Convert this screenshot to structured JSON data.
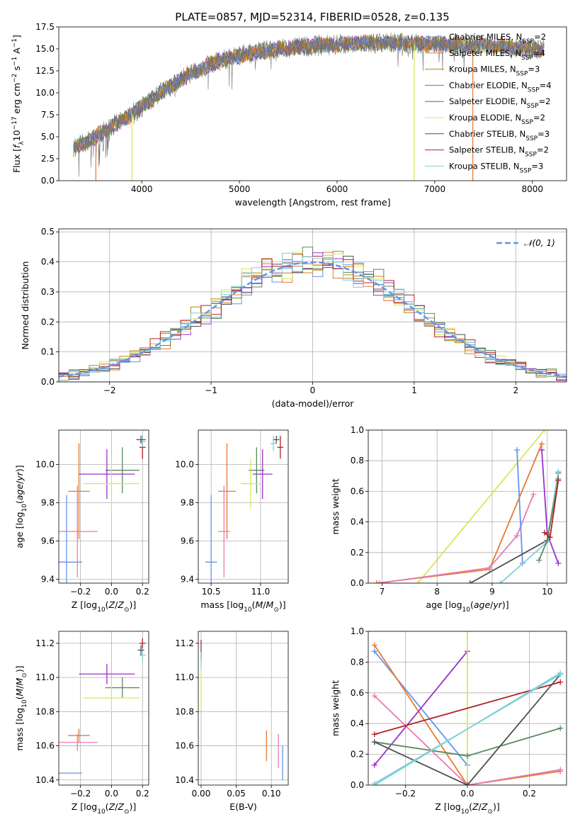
{
  "title": "PLATE=0857, MJD=52314, FIBERID=0528, z=0.135",
  "colors": {
    "miles_chabrier": "#6495ed",
    "miles_salpeter": "#e67a2e",
    "miles_kroupa": "#b8860b",
    "elodie_chabrier": "#5a8a5e",
    "elodie_salpeter": "#9a32cd",
    "elodie_kroupa": "#d4e85a",
    "stelib_chabrier": "#505050",
    "stelib_salpeter": "#b22222",
    "stelib_kroupa": "#7fd0d8",
    "pink": "#e87ab0",
    "normal": "#6495ed",
    "grid": "#b0b0b0"
  },
  "legend": [
    {
      "label": "Chabrier MILES, N",
      "sub": "SSP",
      "suffix": "=2",
      "color": "#6495ed"
    },
    {
      "label": "Salpeter MILES, N",
      "sub": "SSP",
      "suffix": "=4",
      "color": "#e67a2e"
    },
    {
      "label": "Kroupa MILES, N",
      "sub": "SSP",
      "suffix": "=3",
      "color": "#b8860b"
    },
    {
      "label": "Chabrier ELODIE, N",
      "sub": "SSP",
      "suffix": "=4",
      "color": "#5a8a5e"
    },
    {
      "label": "Salpeter ELODIE, N",
      "sub": "SSP",
      "suffix": "=2",
      "color": "#9a32cd"
    },
    {
      "label": "Kroupa ELODIE, N",
      "sub": "SSP",
      "suffix": "=2",
      "color": "#d4e85a"
    },
    {
      "label": "Chabrier STELIB, N",
      "sub": "SSP",
      "suffix": "=3",
      "color": "#505050"
    },
    {
      "label": "Salpeter STELIB, N",
      "sub": "SSP",
      "suffix": "=2",
      "color": "#b22222"
    },
    {
      "label": "Kroupa STELIB, N",
      "sub": "SSP",
      "suffix": "=3",
      "color": "#7fd0d8"
    }
  ],
  "chart_data": [
    {
      "type": "line",
      "title": "PLATE=0857, MJD=52314, FIBERID=0528, z=0.135",
      "xlabel": "wavelength [Angstrom, rest frame]",
      "ylabel": "Flux [f_λ 10^-17 erg cm^-2 s^-1 A^-1]",
      "xlim": [
        3150,
        8350
      ],
      "ylim": [
        0,
        17.5
      ],
      "xticks": [
        4000,
        5000,
        6000,
        7000,
        8000
      ],
      "yticks": [
        0.0,
        2.5,
        5.0,
        7.5,
        10.0,
        12.5,
        15.0,
        17.5
      ],
      "grid": false,
      "legend": "right",
      "continuum": {
        "x": [
          3300,
          3500,
          3700,
          3850,
          3950,
          4100,
          4300,
          4500,
          4800,
          5100,
          5400,
          5700,
          6000,
          6300,
          6600,
          6900,
          7200,
          7500,
          7800,
          8100
        ],
        "y": [
          3.8,
          4.8,
          6.2,
          7.2,
          8.0,
          9.3,
          10.8,
          12.2,
          13.7,
          14.5,
          15.0,
          15.3,
          15.5,
          15.7,
          15.7,
          15.6,
          15.5,
          15.4,
          15.2,
          14.9
        ]
      }
    },
    {
      "type": "bar",
      "xlabel": "(data-model)/error",
      "ylabel": "Normed distribution",
      "xlim": [
        -2.5,
        2.5
      ],
      "ylim": [
        0,
        0.51
      ],
      "xticks": [
        -2,
        -1,
        0,
        1,
        2
      ],
      "yticks": [
        0.0,
        0.1,
        0.2,
        0.3,
        0.4,
        0.5
      ],
      "grid": true,
      "legend": "top-right",
      "normal_label": "𝒩(0, 1)",
      "bin_width": 0.1
    },
    {
      "type": "scatter",
      "xlabel": "Z [log10(Z/Z⊙)]",
      "ylabel": "age [log10(age/yr)]",
      "xlim": [
        -0.34,
        0.24
      ],
      "ylim": [
        9.38,
        10.18
      ],
      "xticks": [
        -0.2,
        0.0,
        0.2
      ],
      "yticks": [
        9.4,
        9.6,
        9.8,
        10.0
      ],
      "points": [
        {
          "x": -0.29,
          "y": 9.49,
          "xerr": 0.1,
          "yerr": 0.35,
          "color": "#6495ed"
        },
        {
          "x": -0.21,
          "y": 9.86,
          "xerr": 0.07,
          "yerr": 0.25,
          "color": "#e67a2e"
        },
        {
          "x": -0.22,
          "y": 9.65,
          "xerr": 0.13,
          "yerr": 0.24,
          "color": "#e87ab0"
        },
        {
          "x": 0.07,
          "y": 9.97,
          "xerr": 0.11,
          "yerr": 0.12,
          "color": "#5a8a5e"
        },
        {
          "x": -0.03,
          "y": 9.95,
          "xerr": 0.18,
          "yerr": 0.13,
          "color": "#9a32cd"
        },
        {
          "x": 0.0,
          "y": 9.9,
          "xerr": 0.18,
          "yerr": 0.13,
          "color": "#d4e85a"
        },
        {
          "x": 0.2,
          "y": 10.09,
          "xerr": 0.02,
          "yerr": 0.06,
          "color": "#b22222"
        },
        {
          "x": 0.2,
          "y": 10.12,
          "xerr": 0.02,
          "yerr": 0.03,
          "color": "#7fd0d8"
        },
        {
          "x": 0.19,
          "y": 10.13,
          "xerr": 0.03,
          "yerr": 0.02,
          "color": "#505050"
        }
      ]
    },
    {
      "type": "scatter",
      "xlabel": "mass [log10(M/M⊙)]",
      "ylabel": "",
      "xlim": [
        10.37,
        11.28
      ],
      "ylim": [
        9.38,
        10.18
      ],
      "xticks": [
        10.5,
        11.0
      ],
      "yticks": [
        9.4,
        9.6,
        9.8,
        10.0
      ],
      "points": [
        {
          "x": 10.5,
          "y": 9.49,
          "xerr": 0.06,
          "yerr": 0.35,
          "color": "#6495ed"
        },
        {
          "x": 10.66,
          "y": 9.86,
          "xerr": 0.09,
          "yerr": 0.25,
          "color": "#e67a2e"
        },
        {
          "x": 10.63,
          "y": 9.65,
          "xerr": 0.06,
          "yerr": 0.24,
          "color": "#e87ab0"
        },
        {
          "x": 10.96,
          "y": 9.97,
          "xerr": 0.08,
          "yerr": 0.12,
          "color": "#5a8a5e"
        },
        {
          "x": 11.02,
          "y": 9.95,
          "xerr": 0.1,
          "yerr": 0.13,
          "color": "#9a32cd"
        },
        {
          "x": 10.9,
          "y": 9.9,
          "xerr": 0.1,
          "yerr": 0.13,
          "color": "#d4e85a"
        },
        {
          "x": 11.2,
          "y": 10.09,
          "xerr": 0.03,
          "yerr": 0.06,
          "color": "#b22222"
        },
        {
          "x": 11.13,
          "y": 10.11,
          "xerr": 0.03,
          "yerr": 0.04,
          "color": "#7fd0d8"
        },
        {
          "x": 11.16,
          "y": 10.13,
          "xerr": 0.03,
          "yerr": 0.02,
          "color": "#505050"
        }
      ]
    },
    {
      "type": "line",
      "xlabel": "age [log10(age/yr)]",
      "ylabel": "mass weight",
      "xlim": [
        6.75,
        10.35
      ],
      "ylim": [
        0,
        1
      ],
      "xticks": [
        7,
        8,
        9,
        10
      ],
      "yticks": [
        0.0,
        0.2,
        0.4,
        0.6,
        0.8,
        1.0
      ],
      "grid": true,
      "series": [
        {
          "color": "#d4e85a",
          "x": [
            7.65,
            9.95
          ],
          "y": [
            0.0,
            1.0
          ]
        },
        {
          "color": "#e67a2e",
          "x": [
            6.9,
            8.95,
            9.9
          ],
          "y": [
            0.0,
            0.09,
            0.91
          ]
        },
        {
          "color": "#e87ab0",
          "x": [
            6.95,
            8.95,
            9.45,
            9.75
          ],
          "y": [
            0.0,
            0.1,
            0.31,
            0.58
          ]
        },
        {
          "color": "#6495ed",
          "x": [
            9.45,
            9.55
          ],
          "y": [
            0.87,
            0.13
          ]
        },
        {
          "color": "#9a32cd",
          "x": [
            9.9,
            10.0,
            10.2
          ],
          "y": [
            0.87,
            0.32,
            0.13
          ]
        },
        {
          "color": "#505050",
          "x": [
            8.6,
            10.0,
            10.2
          ],
          "y": [
            0.0,
            0.28,
            0.72
          ]
        },
        {
          "color": "#7fd0d8",
          "x": [
            9.15,
            10.0,
            10.2
          ],
          "y": [
            0.0,
            0.27,
            0.73
          ]
        },
        {
          "color": "#5a8a5e",
          "x": [
            9.85,
            10.0,
            10.2
          ],
          "y": [
            0.15,
            0.28,
            0.68
          ]
        },
        {
          "color": "#b22222",
          "x": [
            9.95,
            10.05,
            10.2
          ],
          "y": [
            0.33,
            0.3,
            0.67
          ]
        }
      ]
    },
    {
      "type": "scatter",
      "xlabel": "Z [log10(Z/Z⊙)]",
      "ylabel": "mass [log10(M/M⊙)]",
      "xlim": [
        -0.34,
        0.24
      ],
      "ylim": [
        10.37,
        11.27
      ],
      "xticks": [
        -0.2,
        0.0,
        0.2
      ],
      "yticks": [
        10.4,
        10.6,
        10.8,
        11.0,
        11.2
      ],
      "points": [
        {
          "x": -0.29,
          "y": 10.44,
          "xerr": 0.1,
          "yerr": 0.0,
          "color": "#6495ed"
        },
        {
          "x": -0.21,
          "y": 10.66,
          "xerr": 0.07,
          "yerr": 0.04,
          "color": "#e67a2e"
        },
        {
          "x": -0.22,
          "y": 10.62,
          "xerr": 0.13,
          "yerr": 0.05,
          "color": "#e87ab0"
        },
        {
          "x": 0.07,
          "y": 10.94,
          "xerr": 0.11,
          "yerr": 0.06,
          "color": "#5a8a5e"
        },
        {
          "x": -0.03,
          "y": 11.02,
          "xerr": 0.18,
          "yerr": 0.06,
          "color": "#9a32cd"
        },
        {
          "x": 0.0,
          "y": 10.88,
          "xerr": 0.18,
          "yerr": 0.09,
          "color": "#d4e85a"
        },
        {
          "x": 0.2,
          "y": 11.2,
          "xerr": 0.02,
          "yerr": 0.03,
          "color": "#b22222"
        },
        {
          "x": 0.2,
          "y": 11.13,
          "xerr": 0.02,
          "yerr": 0.04,
          "color": "#7fd0d8"
        },
        {
          "x": 0.19,
          "y": 11.16,
          "xerr": 0.02,
          "yerr": 0.03,
          "color": "#505050"
        }
      ]
    },
    {
      "type": "scatter",
      "xlabel": "E(B-V)",
      "ylabel": "",
      "xlim": [
        -0.004,
        0.124
      ],
      "ylim": [
        10.37,
        11.27
      ],
      "xticks": [
        0.0,
        0.05,
        0.1
      ],
      "yticks": [
        10.4,
        10.6,
        10.8,
        11.0,
        11.2
      ],
      "points": [
        {
          "x": 0.0,
          "y": 11.16,
          "xerr": 0,
          "yerr": 0.06,
          "color": "#b22222"
        },
        {
          "x": 0.0,
          "y": 11.1,
          "xerr": 0,
          "yerr": 0.05,
          "color": "#7fd0d8"
        },
        {
          "x": 0.0,
          "y": 10.93,
          "xerr": 0,
          "yerr": 0.12,
          "color": "#d4e85a"
        },
        {
          "x": 0.093,
          "y": 10.6,
          "xerr": 0,
          "yerr": 0.09,
          "color": "#e67a2e"
        },
        {
          "x": 0.11,
          "y": 10.57,
          "xerr": 0,
          "yerr": 0.1,
          "color": "#e87ab0"
        },
        {
          "x": 0.116,
          "y": 10.5,
          "xerr": 0,
          "yerr": 0.1,
          "color": "#6495ed"
        }
      ]
    },
    {
      "type": "line",
      "xlabel": "Z [log10(Z/Z⊙)]",
      "ylabel": "mass weight",
      "xlim": [
        -0.32,
        0.32
      ],
      "ylim": [
        0,
        1
      ],
      "xticks": [
        -0.2,
        0.0,
        0.2
      ],
      "yticks": [
        0.0,
        0.2,
        0.4,
        0.6,
        0.8,
        1.0
      ],
      "grid": true,
      "series": [
        {
          "color": "#6495ed",
          "x": [
            -0.3,
            0.0
          ],
          "y": [
            0.87,
            0.13
          ]
        },
        {
          "color": "#e67a2e",
          "x": [
            -0.3,
            0.0,
            0.3
          ],
          "y": [
            0.91,
            0.0,
            0.09
          ]
        },
        {
          "color": "#e87ab0",
          "x": [
            -0.3,
            0.0,
            0.3
          ],
          "y": [
            0.58,
            0.0,
            0.1
          ]
        },
        {
          "color": "#9a32cd",
          "x": [
            -0.3,
            0.0
          ],
          "y": [
            0.13,
            0.87
          ]
        },
        {
          "color": "#d4e85a",
          "x": [
            0.0,
            0.0
          ],
          "y": [
            0.0,
            1.0
          ]
        },
        {
          "color": "#b22222",
          "x": [
            -0.3,
            0.3
          ],
          "y": [
            0.33,
            0.67
          ]
        },
        {
          "color": "#5a8a5e",
          "x": [
            -0.3,
            0.0,
            0.3
          ],
          "y": [
            0.28,
            0.19,
            0.37
          ]
        },
        {
          "color": "#505050",
          "x": [
            -0.3,
            0.0,
            0.3
          ],
          "y": [
            0.28,
            0.0,
            0.72
          ]
        },
        {
          "color": "#7fd0d8",
          "x": [
            -0.3,
            0.3
          ],
          "y": [
            0.0,
            0.73
          ]
        },
        {
          "color": "#7fd0d8",
          "x": [
            -0.3,
            0.3
          ],
          "y": [
            0.01,
            0.72
          ]
        }
      ]
    }
  ]
}
